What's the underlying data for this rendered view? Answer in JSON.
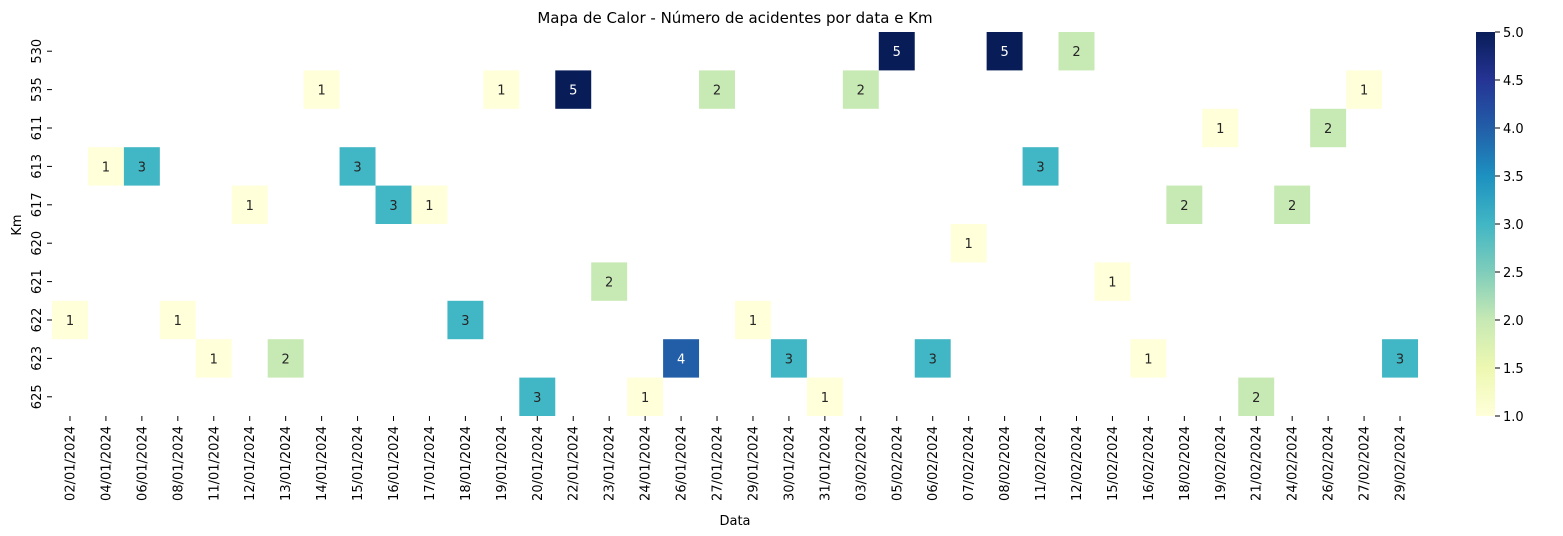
{
  "chart_data": {
    "type": "heatmap",
    "title": "Mapa de Calor - Número de acidentes por data e Km",
    "xlabel": "Data",
    "ylabel": "Km",
    "x_categories": [
      "02/01/2024",
      "04/01/2024",
      "06/01/2024",
      "08/01/2024",
      "11/01/2024",
      "12/01/2024",
      "13/01/2024",
      "14/01/2024",
      "15/01/2024",
      "16/01/2024",
      "17/01/2024",
      "18/01/2024",
      "19/01/2024",
      "20/01/2024",
      "22/01/2024",
      "23/01/2024",
      "24/01/2024",
      "26/01/2024",
      "27/01/2024",
      "29/01/2024",
      "30/01/2024",
      "31/01/2024",
      "03/02/2024",
      "05/02/2024",
      "06/02/2024",
      "07/02/2024",
      "08/02/2024",
      "11/02/2024",
      "12/02/2024",
      "15/02/2024",
      "16/02/2024",
      "18/02/2024",
      "19/02/2024",
      "21/02/2024",
      "24/02/2024",
      "26/02/2024",
      "27/02/2024",
      "29/02/2024"
    ],
    "y_categories": [
      "530",
      "535",
      "611",
      "613",
      "617",
      "620",
      "621",
      "622",
      "623",
      "625"
    ],
    "cells": [
      {
        "x": "05/02/2024",
        "y": "530",
        "value": 5
      },
      {
        "x": "08/02/2024",
        "y": "530",
        "value": 5
      },
      {
        "x": "12/02/2024",
        "y": "530",
        "value": 2
      },
      {
        "x": "14/01/2024",
        "y": "535",
        "value": 1
      },
      {
        "x": "19/01/2024",
        "y": "535",
        "value": 1
      },
      {
        "x": "22/01/2024",
        "y": "535",
        "value": 5
      },
      {
        "x": "27/01/2024",
        "y": "535",
        "value": 2
      },
      {
        "x": "03/02/2024",
        "y": "535",
        "value": 2
      },
      {
        "x": "27/02/2024",
        "y": "535",
        "value": 1
      },
      {
        "x": "19/02/2024",
        "y": "611",
        "value": 1
      },
      {
        "x": "26/02/2024",
        "y": "611",
        "value": 2
      },
      {
        "x": "04/01/2024",
        "y": "613",
        "value": 1
      },
      {
        "x": "06/01/2024",
        "y": "613",
        "value": 3
      },
      {
        "x": "15/01/2024",
        "y": "613",
        "value": 3
      },
      {
        "x": "11/02/2024",
        "y": "613",
        "value": 3
      },
      {
        "x": "12/01/2024",
        "y": "617",
        "value": 1
      },
      {
        "x": "16/01/2024",
        "y": "617",
        "value": 3
      },
      {
        "x": "17/01/2024",
        "y": "617",
        "value": 1
      },
      {
        "x": "18/02/2024",
        "y": "617",
        "value": 2
      },
      {
        "x": "24/02/2024",
        "y": "617",
        "value": 2
      },
      {
        "x": "07/02/2024",
        "y": "620",
        "value": 1
      },
      {
        "x": "23/01/2024",
        "y": "621",
        "value": 2
      },
      {
        "x": "15/02/2024",
        "y": "621",
        "value": 1
      },
      {
        "x": "02/01/2024",
        "y": "622",
        "value": 1
      },
      {
        "x": "08/01/2024",
        "y": "622",
        "value": 1
      },
      {
        "x": "18/01/2024",
        "y": "622",
        "value": 3
      },
      {
        "x": "29/01/2024",
        "y": "622",
        "value": 1
      },
      {
        "x": "11/01/2024",
        "y": "623",
        "value": 1
      },
      {
        "x": "13/01/2024",
        "y": "623",
        "value": 2
      },
      {
        "x": "26/01/2024",
        "y": "623",
        "value": 4
      },
      {
        "x": "30/01/2024",
        "y": "623",
        "value": 3
      },
      {
        "x": "06/02/2024",
        "y": "623",
        "value": 3
      },
      {
        "x": "16/02/2024",
        "y": "623",
        "value": 1
      },
      {
        "x": "29/02/2024",
        "y": "623",
        "value": 3
      },
      {
        "x": "20/01/2024",
        "y": "625",
        "value": 3
      },
      {
        "x": "24/01/2024",
        "y": "625",
        "value": 1
      },
      {
        "x": "31/01/2024",
        "y": "625",
        "value": 1
      },
      {
        "x": "21/02/2024",
        "y": "625",
        "value": 2
      }
    ],
    "colorscale": "YlGnBu",
    "vmin": 1,
    "vmax": 5,
    "colorbar_ticks": [
      "1.0",
      "1.5",
      "2.0",
      "2.5",
      "3.0",
      "3.5",
      "4.0",
      "4.5",
      "5.0"
    ],
    "annotations": true
  }
}
